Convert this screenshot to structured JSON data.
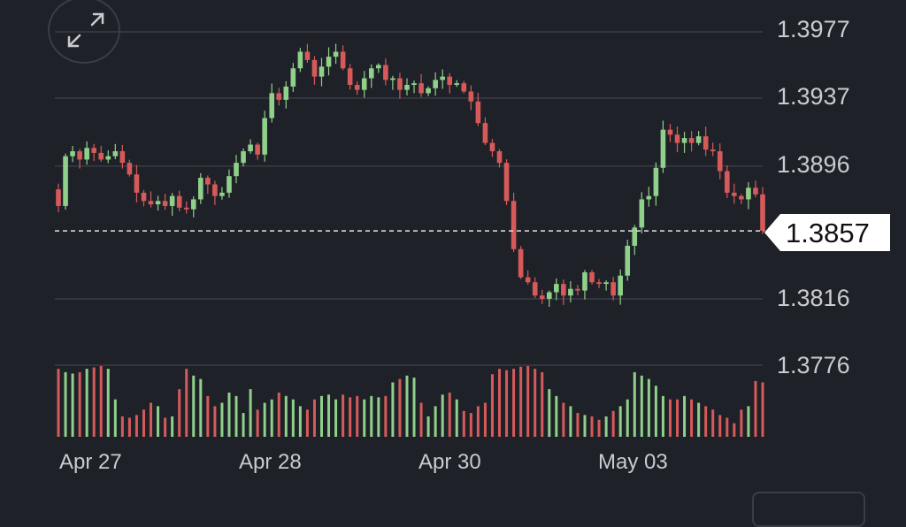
{
  "colors": {
    "up": "#8fd08a",
    "down": "#d65a5a",
    "grid": "#3a3d46",
    "text": "#c9cbd1",
    "background": "#1f2128"
  },
  "icons": {
    "expand": "expand-arrows-icon"
  },
  "chart_data": {
    "type": "candlestick",
    "y_ticks": [
      "1.3977",
      "1.3937",
      "1.3896",
      "1.3816",
      "1.3776"
    ],
    "x_ticks": [
      "Apr 27",
      "Apr 28",
      "Apr 30",
      "May 03"
    ],
    "ylim": [
      1.3776,
      1.3977
    ],
    "last_price": "1.3857",
    "grid": true,
    "close_series": [
      1.3872,
      1.3902,
      1.3905,
      1.39,
      1.3907,
      1.3904,
      1.39,
      1.3902,
      1.3905,
      1.3898,
      1.3891,
      1.388,
      1.3875,
      1.3873,
      1.3875,
      1.3872,
      1.3878,
      1.3871,
      1.387,
      1.3876,
      1.3889,
      1.3885,
      1.3878,
      1.388,
      1.389,
      1.3898,
      1.3905,
      1.3909,
      1.3903,
      1.3925,
      1.394,
      1.3936,
      1.3944,
      1.3955,
      1.3965,
      1.396,
      1.395,
      1.3956,
      1.3962,
      1.3965,
      1.3955,
      1.3945,
      1.3942,
      1.3949,
      1.3955,
      1.3957,
      1.3948,
      1.3949,
      1.3942,
      1.3945,
      1.3946,
      1.394,
      1.3943,
      1.3948,
      1.395,
      1.3945,
      1.3946,
      1.3941,
      1.3935,
      1.3922,
      1.391,
      1.3905,
      1.3898,
      1.3875,
      1.3846,
      1.3829,
      1.3826,
      1.3818,
      1.3816,
      1.382,
      1.3825,
      1.3818,
      1.3822,
      1.3821,
      1.3832,
      1.3826,
      1.3825,
      1.3826,
      1.3818,
      1.383,
      1.3848,
      1.3859,
      1.3876,
      1.3878,
      1.3895,
      1.3918,
      1.3915,
      1.391,
      1.3913,
      1.391,
      1.3914,
      1.3906,
      1.3905,
      1.3893,
      1.388,
      1.3878,
      1.3876,
      1.3883,
      1.3879,
      1.3857
    ],
    "volume_series": [
      1.0,
      0.95,
      0.93,
      0.95,
      1.0,
      1.02,
      1.04,
      1.0,
      0.55,
      0.3,
      0.28,
      0.32,
      0.4,
      0.5,
      0.45,
      0.28,
      0.3,
      0.7,
      1.0,
      0.9,
      0.85,
      0.6,
      0.45,
      0.5,
      0.65,
      0.6,
      0.35,
      0.7,
      0.4,
      0.5,
      0.55,
      0.65,
      0.6,
      0.55,
      0.45,
      0.4,
      0.55,
      0.6,
      0.62,
      0.55,
      0.62,
      0.58,
      0.6,
      0.55,
      0.6,
      0.58,
      0.6,
      0.8,
      0.85,
      0.9,
      0.87,
      0.5,
      0.3,
      0.45,
      0.62,
      0.65,
      0.55,
      0.38,
      0.35,
      0.45,
      0.5,
      0.92,
      1.0,
      0.98,
      1.0,
      1.03,
      1.04,
      1.0,
      0.95,
      0.7,
      0.6,
      0.5,
      0.45,
      0.35,
      0.32,
      0.3,
      0.25,
      0.3,
      0.38,
      0.45,
      0.55,
      0.95,
      0.9,
      0.85,
      0.75,
      0.6,
      0.55,
      0.55,
      0.6,
      0.55,
      0.5,
      0.45,
      0.4,
      0.32,
      0.28,
      0.2,
      0.4,
      0.45,
      0.82,
      0.8
    ]
  }
}
